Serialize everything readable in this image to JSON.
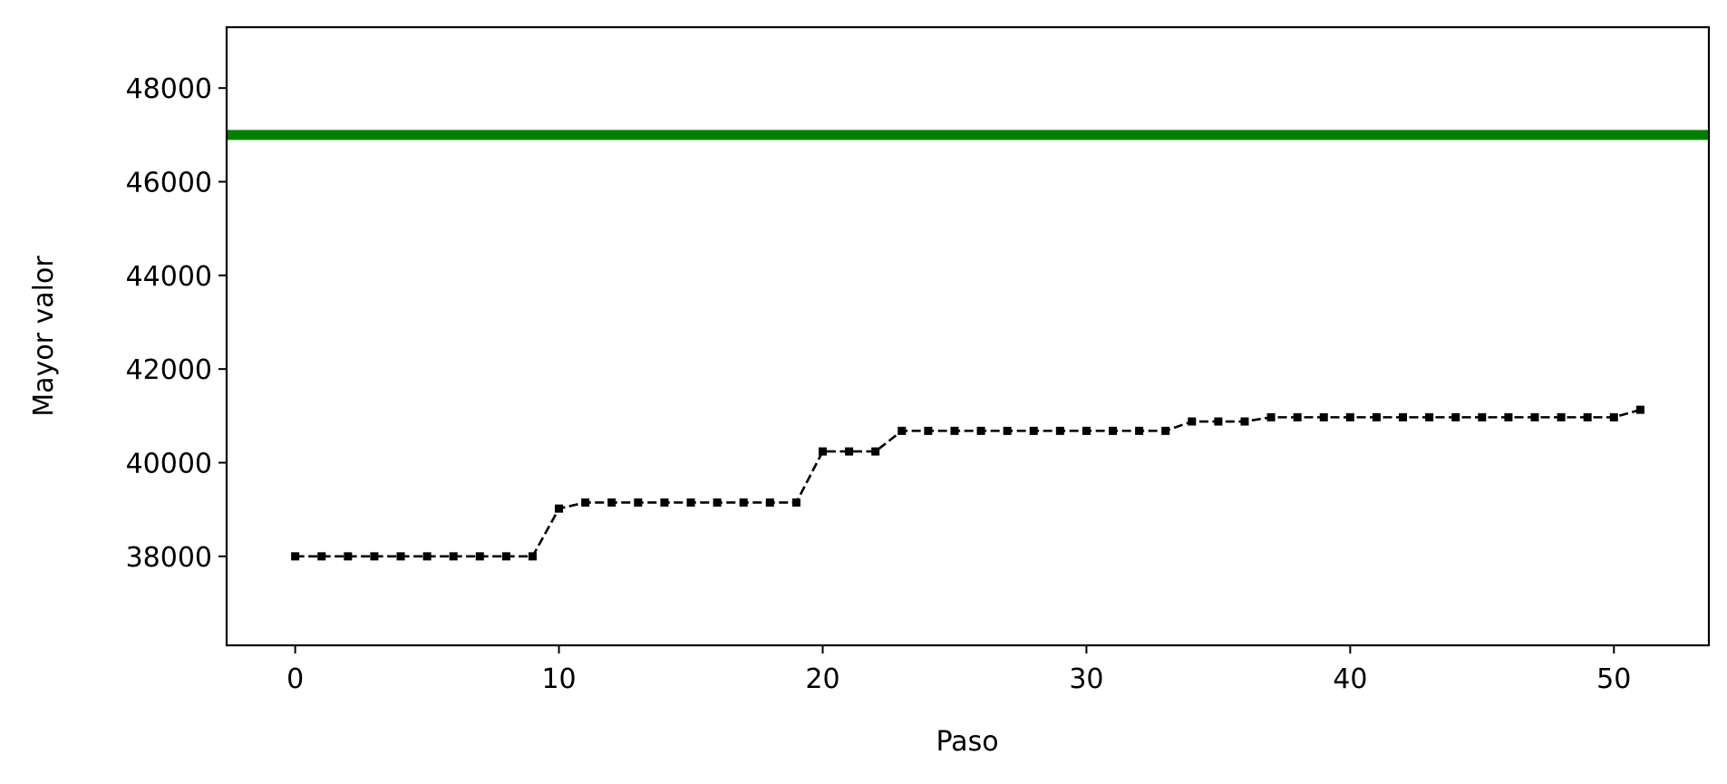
{
  "chart_data": {
    "type": "line",
    "title": "",
    "xlabel": "Paso",
    "ylabel": "Mayor valor",
    "xlim": [
      -2.6,
      53.6
    ],
    "ylim": [
      36100,
      49300
    ],
    "xticks": [
      0,
      10,
      20,
      30,
      40,
      50
    ],
    "yticks": [
      38000,
      40000,
      42000,
      44000,
      46000,
      48000
    ],
    "grid": false,
    "legend": "none",
    "reference_line": {
      "y": 47000,
      "color": "#008000"
    },
    "series": [
      {
        "color": "#000000",
        "line_style": "dashed",
        "marker": "square",
        "x": [
          0,
          1,
          2,
          3,
          4,
          5,
          6,
          7,
          8,
          9,
          10,
          11,
          12,
          13,
          14,
          15,
          16,
          17,
          18,
          19,
          20,
          21,
          22,
          23,
          24,
          25,
          26,
          27,
          28,
          29,
          30,
          31,
          32,
          33,
          34,
          35,
          36,
          37,
          38,
          39,
          40,
          41,
          42,
          43,
          44,
          45,
          46,
          47,
          48,
          49,
          50,
          51
        ],
        "y": [
          38000,
          38000,
          38000,
          38000,
          38000,
          38000,
          38000,
          38000,
          38000,
          38000,
          39020,
          39150,
          39150,
          39150,
          39150,
          39150,
          39150,
          39150,
          39150,
          39150,
          40240,
          40240,
          40240,
          40680,
          40680,
          40680,
          40680,
          40680,
          40680,
          40680,
          40680,
          40680,
          40680,
          40680,
          40880,
          40880,
          40880,
          40970,
          40970,
          40970,
          40970,
          40970,
          40970,
          40970,
          40970,
          40970,
          40970,
          40970,
          40970,
          40970,
          40970,
          41130
        ]
      }
    ]
  }
}
